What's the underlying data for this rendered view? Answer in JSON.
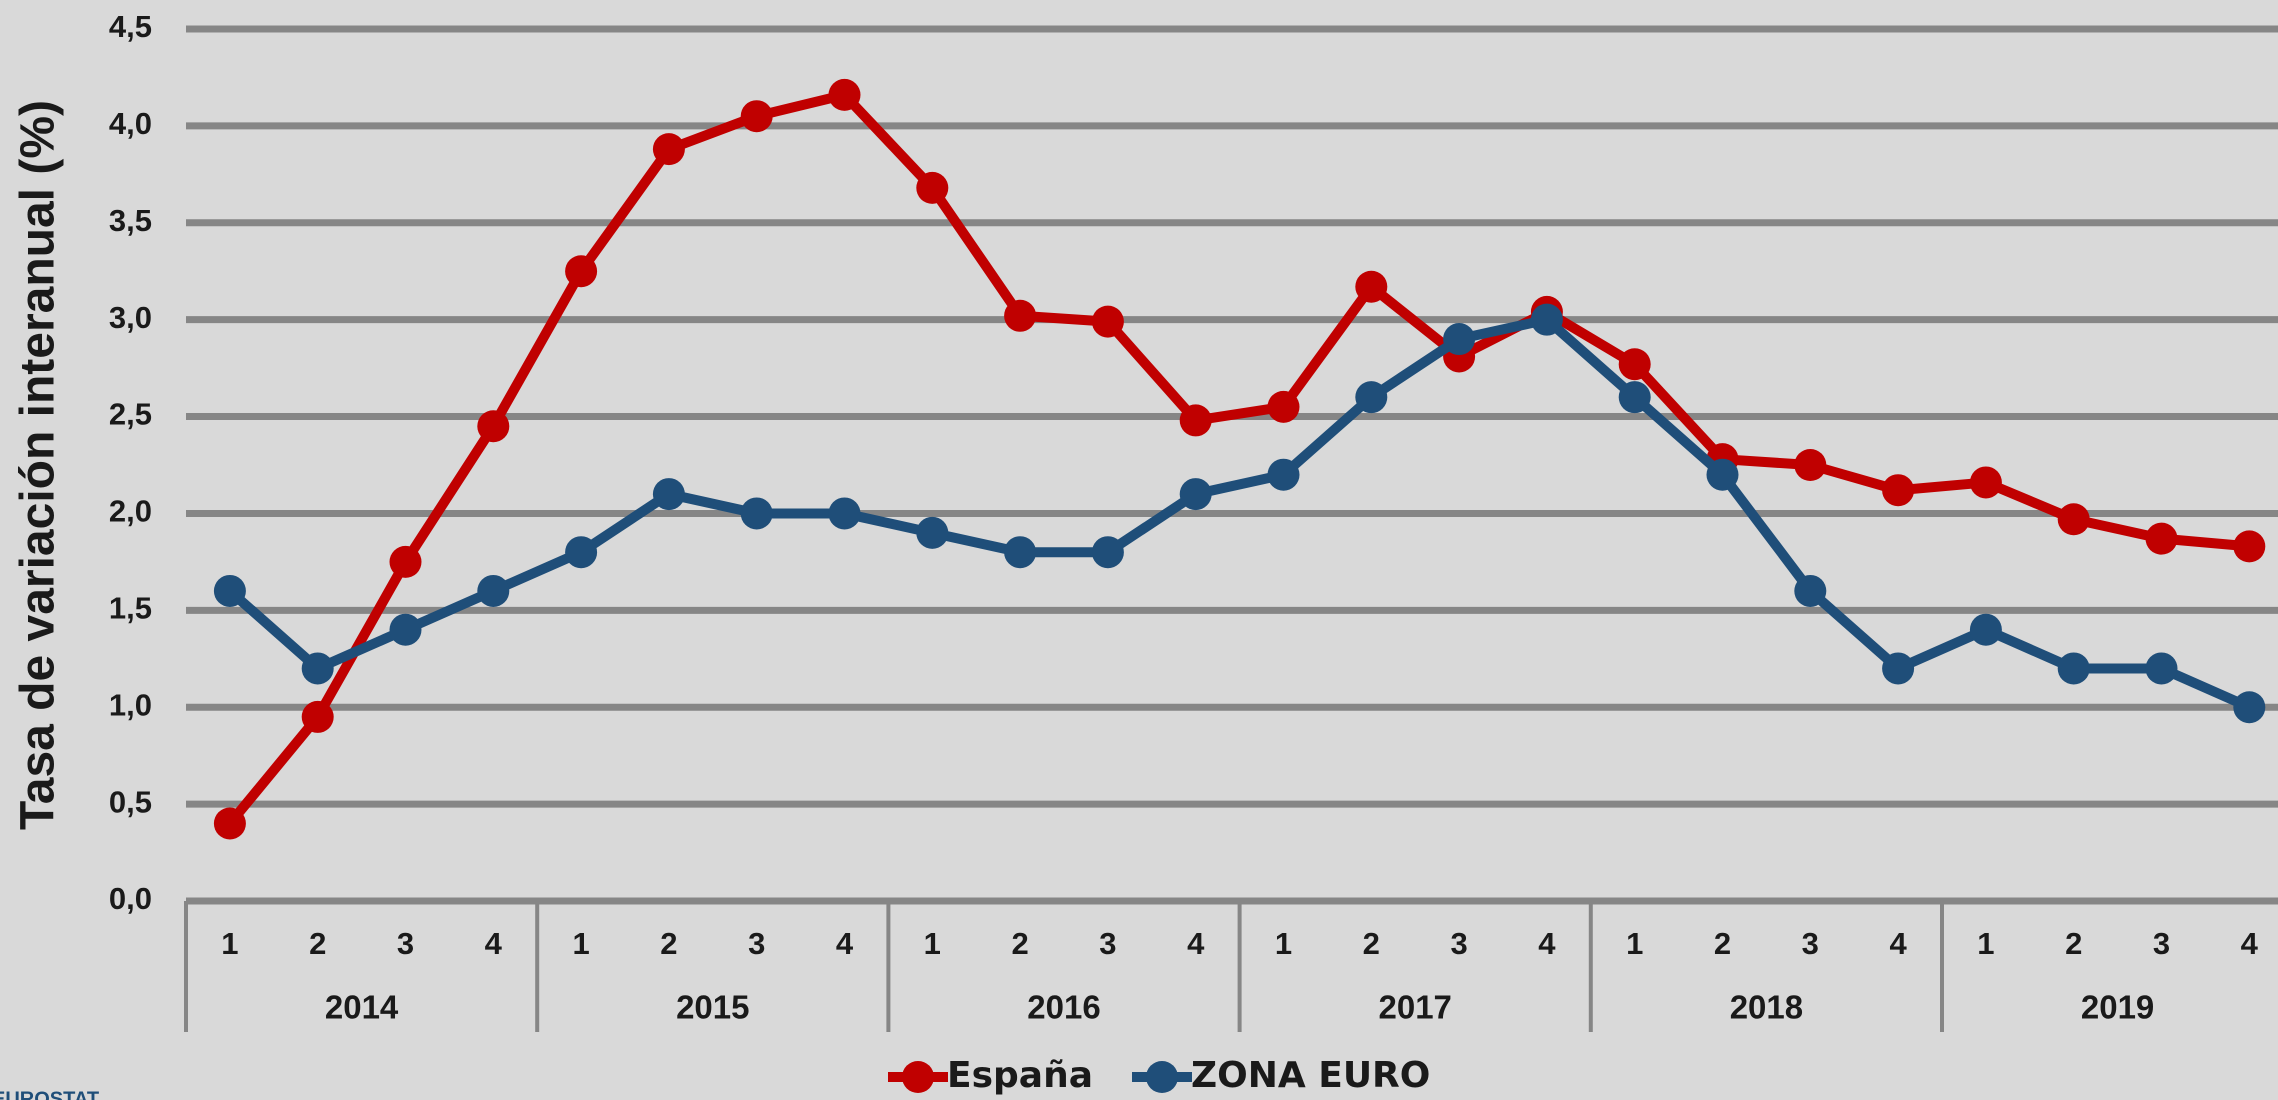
{
  "chart_data": {
    "type": "line",
    "y_label": "Tasa de variación interanual (%)",
    "categories": [
      "1",
      "2",
      "3",
      "4",
      "1",
      "2",
      "3",
      "4",
      "1",
      "2",
      "3",
      "4",
      "1",
      "2",
      "3",
      "4",
      "1",
      "2",
      "3",
      "4",
      "1",
      "2",
      "3",
      "4"
    ],
    "category_groups": [
      "2014",
      "2015",
      "2016",
      "2017",
      "2018",
      "2019"
    ],
    "series": [
      {
        "name": "España",
        "color": "#c00000",
        "values": [
          0.4,
          0.95,
          1.75,
          2.45,
          3.25,
          3.88,
          4.05,
          4.16,
          3.68,
          3.02,
          2.99,
          2.48,
          2.55,
          3.17,
          2.81,
          3.04,
          2.77,
          2.28,
          2.25,
          2.12,
          2.16,
          1.97,
          1.87,
          1.83
        ]
      },
      {
        "name": "ZONA EURO",
        "color": "#1f4e79",
        "values": [
          1.6,
          1.2,
          1.4,
          1.6,
          1.8,
          2.1,
          2.0,
          2.0,
          1.9,
          1.8,
          1.8,
          2.1,
          2.2,
          2.6,
          2.9,
          3.0,
          2.6,
          2.2,
          1.6,
          1.2,
          1.4,
          1.2,
          1.2,
          1.0
        ]
      }
    ],
    "ylim": [
      0,
      4.5
    ],
    "yticks": [
      {
        "value": 0,
        "label": "0,0"
      },
      {
        "value": 0.5,
        "label": "0,5"
      },
      {
        "value": 1,
        "label": "1,0"
      },
      {
        "value": 1.5,
        "label": "1,5"
      },
      {
        "value": 2,
        "label": "2,0"
      },
      {
        "value": 2.5,
        "label": "2,5"
      },
      {
        "value": 3,
        "label": "3,0"
      },
      {
        "value": 3.5,
        "label": "3,5"
      },
      {
        "value": 4,
        "label": "4,0"
      },
      {
        "value": 4.5,
        "label": "4,5"
      }
    ],
    "grid": true,
    "legend": "bottom",
    "source": "EUROSTAT"
  }
}
